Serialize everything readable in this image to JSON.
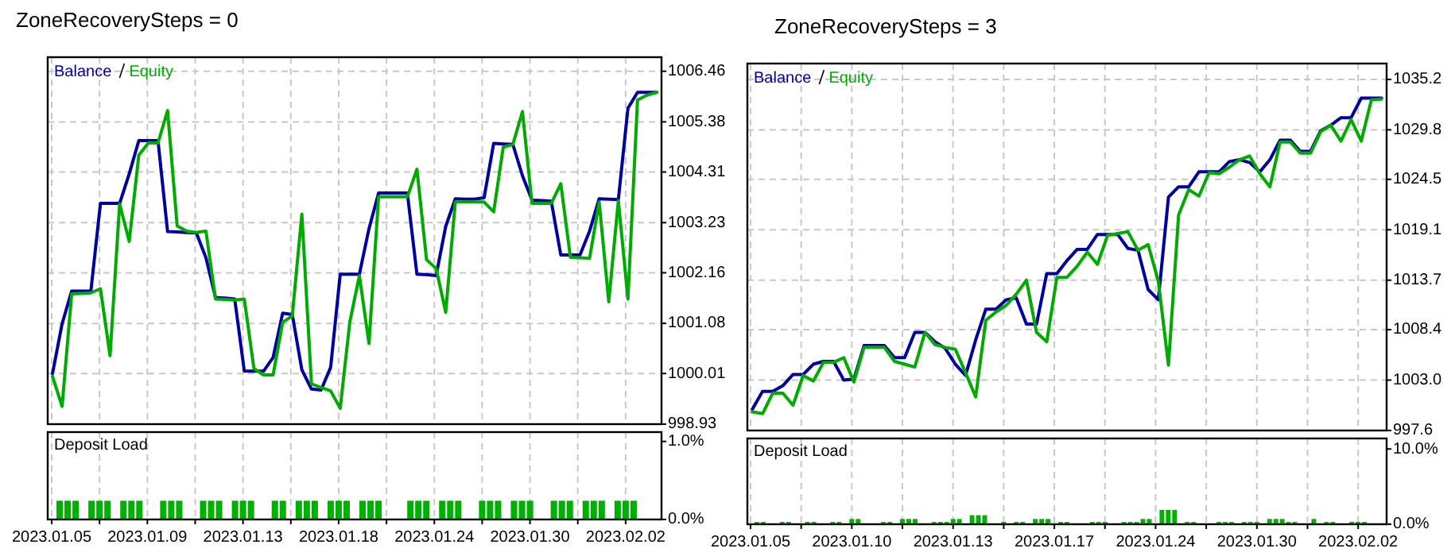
{
  "chart_data": [
    {
      "type": "line",
      "title": "ZoneRecoverySteps = 0",
      "legend": "top left",
      "grid": true,
      "tick_labels": "y",
      "ylim": [
        998.93,
        1006.76
      ],
      "categories": [
        null,
        null,
        null,
        null,
        null,
        null,
        null,
        null,
        null,
        null,
        null,
        null,
        null,
        null,
        null,
        null,
        null,
        null,
        null,
        null,
        null,
        null,
        null,
        null,
        null,
        null,
        null,
        null,
        null,
        null,
        null,
        null,
        null,
        null,
        null,
        null,
        null,
        null,
        null,
        null,
        null,
        null,
        null,
        null,
        null,
        null,
        null,
        null,
        null,
        null,
        null,
        null,
        null,
        null,
        null,
        null,
        null,
        null,
        null,
        null,
        null,
        null,
        null,
        null
      ],
      "yticks": [
        998.93,
        1000.01,
        1001.08,
        1002.16,
        1003.23,
        1004.31,
        1005.38,
        1006.46
      ],
      "series": [
        {
          "name": "Balance",
          "color": "#0000a0",
          "values": [
            1000.01,
            1001.07,
            1001.77,
            1001.77,
            1001.77,
            1003.64,
            1003.64,
            1003.64,
            1004.27,
            1004.98,
            1004.98,
            1004.98,
            1003.04,
            1003.03,
            1003.02,
            1003.01,
            1002.48,
            1001.63,
            1001.62,
            1001.6,
            1000.06,
            1000.06,
            1000.06,
            1000.35,
            1001.3,
            1001.27,
            1000.09,
            999.68,
            999.66,
            1000.14,
            1002.13,
            1002.13,
            1002.13,
            1003.1,
            1003.86,
            1003.86,
            1003.86,
            1003.86,
            1002.13,
            1002.12,
            1002.1,
            1003.15,
            1003.74,
            1003.73,
            1003.73,
            1003.76,
            1004.92,
            1004.91,
            1004.9,
            1004.23,
            1003.71,
            1003.7,
            1003.69,
            1002.54,
            1002.54,
            1002.54,
            1003.05,
            1003.74,
            1003.73,
            1003.72,
            1005.67,
            1006.01,
            1006.01,
            1006.01
          ]
        },
        {
          "name": "Equity",
          "color": "#00aa00",
          "values": [
            999.95,
            999.31,
            1001.71,
            1001.72,
            1001.73,
            1001.82,
            1000.39,
            1003.63,
            1002.83,
            1004.67,
            1004.93,
            1004.93,
            1005.62,
            1003.16,
            1003.05,
            1003.02,
            1003.05,
            1001.6,
            1001.59,
            1001.58,
            1001.6,
            1000.12,
            999.98,
            999.98,
            1001.1,
            1001.24,
            1003.41,
            999.79,
            999.71,
            999.64,
            999.27,
            1001.11,
            1002.1,
            1000.65,
            1003.78,
            1003.78,
            1003.78,
            1003.78,
            1004.37,
            1002.44,
            1002.25,
            1001.32,
            1003.67,
            1003.67,
            1003.67,
            1003.67,
            1003.46,
            1004.84,
            1004.9,
            1005.6,
            1003.64,
            1003.64,
            1003.64,
            1004.06,
            1002.49,
            1002.48,
            1002.47,
            1003.67,
            1001.54,
            1003.7,
            1001.6,
            1005.85,
            1005.95,
            1006.01
          ]
        }
      ]
    },
    {
      "type": "bar",
      "title": "Deposit Load",
      "grid": "x",
      "ylim": [
        0,
        1.12
      ],
      "categories": [
        "2023.01.05",
        null,
        null,
        null,
        null,
        null,
        null,
        null,
        null,
        null,
        null,
        null,
        "2023.01.09",
        null,
        null,
        null,
        null,
        null,
        null,
        null,
        null,
        null,
        null,
        null,
        "2023.01.13",
        null,
        null,
        null,
        null,
        null,
        null,
        null,
        null,
        null,
        null,
        null,
        "2023.01.18",
        null,
        null,
        null,
        null,
        null,
        null,
        null,
        null,
        null,
        null,
        null,
        "2023.01.24",
        null,
        null,
        null,
        null,
        null,
        null,
        null,
        null,
        null,
        null,
        null,
        "2023.01.30",
        null,
        null,
        null,
        null,
        null,
        null,
        null,
        null,
        null,
        null,
        null,
        "2023.02.02",
        null,
        null,
        null,
        null
      ],
      "yticks": [
        {
          "value": 0,
          "label": "0.0%"
        },
        {
          "value": 1,
          "label": "1.0%"
        }
      ],
      "series": [
        {
          "color": "#00b000",
          "values": [
            null,
            0.24,
            0.24,
            0.24,
            null,
            0.24,
            0.24,
            0.24,
            null,
            0.24,
            0.24,
            0.24,
            null,
            null,
            0.24,
            0.24,
            0.24,
            null,
            null,
            0.24,
            0.24,
            0.24,
            null,
            0.24,
            0.24,
            0.24,
            null,
            null,
            0.24,
            0.24,
            null,
            0.24,
            0.24,
            0.24,
            null,
            0.24,
            0.24,
            0.24,
            null,
            0.24,
            0.24,
            0.24,
            null,
            null,
            null,
            0.24,
            0.24,
            0.24,
            null,
            0.24,
            0.24,
            0.24,
            null,
            null,
            0.24,
            0.24,
            0.24,
            null,
            0.24,
            0.24,
            0.24,
            null,
            null,
            0.24,
            0.24,
            0.24,
            null,
            0.24,
            0.24,
            0.24,
            null,
            0.24,
            0.24,
            0.24,
            null,
            null,
            null
          ]
        }
      ]
    },
    {
      "type": "line",
      "title": "ZoneRecoverySteps = 3",
      "legend": "top left",
      "grid": true,
      "tick_labels": "y",
      "ylim": [
        997.6,
        1036.9
      ],
      "categories": [
        null,
        null,
        null,
        null,
        null,
        null,
        null,
        null,
        null,
        null,
        null,
        null,
        null,
        null,
        null,
        null,
        null,
        null,
        null,
        null,
        null,
        null,
        null,
        null,
        null,
        null,
        null,
        null,
        null,
        null,
        null,
        null,
        null,
        null,
        null,
        null,
        null,
        null,
        null,
        null,
        null,
        null,
        null,
        null,
        null,
        null,
        null,
        null,
        null,
        null,
        null,
        null,
        null,
        null,
        null,
        null,
        null,
        null,
        null,
        null,
        null,
        null,
        null
      ],
      "yticks": [
        997.6,
        {
          "value": 1003,
          "label": "1003.0"
        },
        1008.4,
        1013.7,
        1019.1,
        1024.5,
        1029.8,
        1035.2
      ],
      "series": [
        {
          "name": "Balance",
          "color": "#0000a0",
          "values": [
            999.9,
            1001.8,
            1001.8,
            1002.4,
            1003.6,
            1003.6,
            1004.7,
            1005.0,
            1005.0,
            1003.0,
            1003.1,
            1006.7,
            1006.7,
            1006.7,
            1005.4,
            1005.4,
            1008.1,
            1008.1,
            1007.1,
            1006.4,
            1004.7,
            1003.5,
            1007.3,
            1010.6,
            1010.6,
            1011.6,
            1011.8,
            1009.0,
            1009.0,
            1014.4,
            1014.4,
            1015.8,
            1017.0,
            1017.0,
            1018.6,
            1018.6,
            1018.6,
            1017.1,
            1016.9,
            1012.7,
            1011.6,
            1022.6,
            1023.7,
            1023.7,
            1025.3,
            1025.3,
            1025.3,
            1026.4,
            1026.6,
            1026.3,
            1025.3,
            1026.6,
            1028.7,
            1028.7,
            1027.5,
            1027.5,
            1029.7,
            1030.3,
            1031.1,
            1031.1,
            1033.2,
            1033.2,
            1033.2
          ]
        },
        {
          "name": "Equity",
          "color": "#00aa00",
          "values": [
            999.6,
            999.4,
            1001.6,
            1001.6,
            1000.3,
            1003.5,
            1002.9,
            1004.9,
            1004.9,
            1005.4,
            1002.8,
            1006.5,
            1006.5,
            1006.5,
            1005.0,
            1004.7,
            1004.4,
            1008.1,
            1006.8,
            1006.5,
            1006.3,
            1003.8,
            1001.2,
            1009.4,
            1010.3,
            1011.0,
            1012.2,
            1013.7,
            1008.1,
            1007.1,
            1014.0,
            1014.0,
            1015.2,
            1016.7,
            1015.4,
            1018.5,
            1018.7,
            1018.9,
            1016.9,
            1017.5,
            1013.6,
            1004.6,
            1020.7,
            1023.4,
            1022.7,
            1025.2,
            1025.1,
            1025.8,
            1026.6,
            1027.0,
            1025.1,
            1023.7,
            1028.5,
            1028.5,
            1027.3,
            1027.3,
            1029.6,
            1030.3,
            1028.6,
            1030.9,
            1028.6,
            1033.0,
            1033.1
          ]
        }
      ]
    },
    {
      "type": "bar",
      "title": "Deposit Load",
      "grid": "x",
      "ylim": [
        0,
        11.4
      ],
      "categories": [
        "2023.01.05",
        null,
        null,
        null,
        null,
        null,
        null,
        null,
        null,
        null,
        null,
        null,
        null,
        null,
        null,
        null,
        "2023.01.10",
        null,
        null,
        null,
        null,
        null,
        null,
        null,
        null,
        null,
        null,
        null,
        null,
        null,
        null,
        null,
        "2023.01.13",
        null,
        null,
        null,
        null,
        null,
        null,
        null,
        null,
        null,
        null,
        null,
        null,
        null,
        null,
        null,
        "2023.01.17",
        null,
        null,
        null,
        null,
        null,
        null,
        null,
        null,
        null,
        null,
        null,
        null,
        null,
        null,
        null,
        "2023.01.24",
        null,
        null,
        null,
        null,
        null,
        null,
        null,
        null,
        null,
        null,
        null,
        null,
        null,
        null,
        null,
        "2023.01.30",
        null,
        null,
        null,
        null,
        null,
        null,
        null,
        null,
        null,
        null,
        null,
        null,
        null,
        null,
        null,
        "2023.02.02",
        null,
        null,
        null,
        null
      ],
      "yticks": [
        {
          "value": 0,
          "label": "0.0%"
        },
        {
          "value": 10,
          "label": "10.0%"
        }
      ],
      "series": [
        {
          "color": "#00b000",
          "values": [
            null,
            0.3,
            0.3,
            null,
            null,
            0.3,
            0.3,
            null,
            null,
            0.3,
            0.3,
            null,
            null,
            0.3,
            0.3,
            null,
            0.7,
            0.7,
            null,
            null,
            null,
            0.3,
            0.3,
            null,
            0.7,
            0.7,
            0.7,
            null,
            null,
            0.3,
            0.3,
            0.3,
            0.7,
            0.7,
            null,
            1.2,
            1.2,
            1.2,
            null,
            null,
            0.3,
            null,
            0.3,
            0.3,
            null,
            0.7,
            0.7,
            0.7,
            null,
            0.3,
            0.3,
            null,
            null,
            null,
            0.3,
            0.3,
            0.3,
            null,
            null,
            0.3,
            0.3,
            0.3,
            0.7,
            0.7,
            null,
            1.9,
            1.9,
            1.9,
            null,
            0.3,
            0.3,
            null,
            null,
            null,
            0.3,
            0.3,
            0.3,
            null,
            0.3,
            0.3,
            0.3,
            null,
            0.7,
            0.7,
            0.7,
            0.3,
            0.3,
            null,
            null,
            0.7,
            null,
            0.3,
            0.3,
            null,
            null,
            0.3,
            0.3,
            0.3,
            null,
            null,
            null
          ]
        }
      ]
    }
  ]
}
